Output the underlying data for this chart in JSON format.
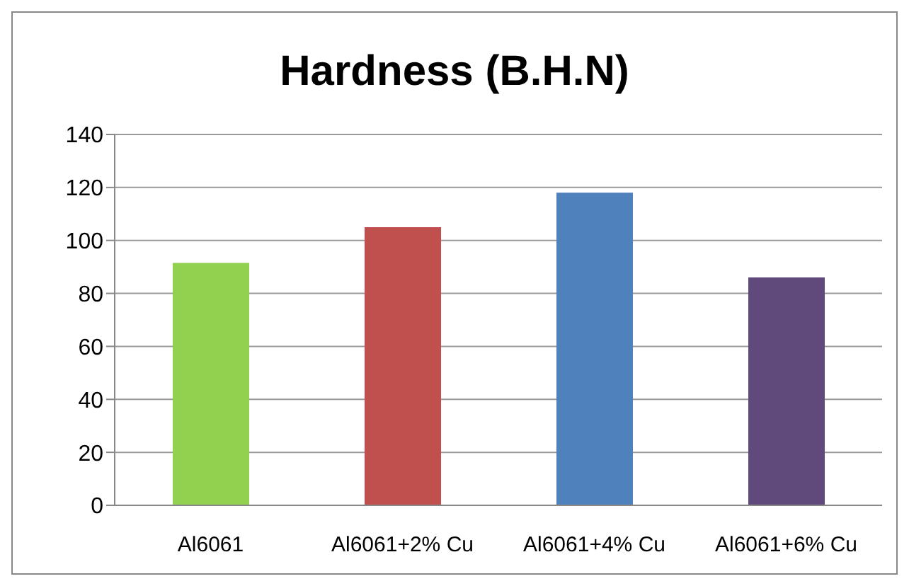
{
  "chart_data": {
    "type": "bar",
    "title": "Hardness (B.H.N)",
    "categories": [
      "Al6061",
      "Al6061+2% Cu",
      "Al6061+4% Cu",
      "Al6061+6% Cu"
    ],
    "values": [
      91.5,
      105,
      118,
      86
    ],
    "colors": [
      "#92d050",
      "#c0504d",
      "#4f81bd",
      "#604a7b"
    ],
    "ylim": [
      0,
      140
    ],
    "yticks": [
      0,
      20,
      40,
      60,
      80,
      100,
      120,
      140
    ],
    "grid": "y"
  }
}
